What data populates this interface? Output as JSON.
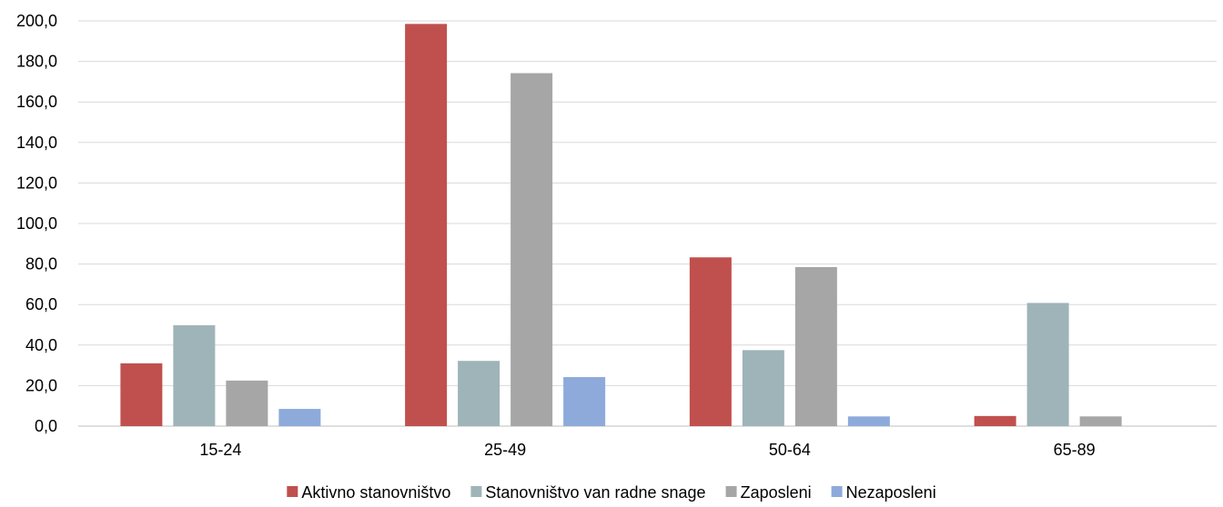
{
  "chart_data": {
    "type": "bar",
    "categories": [
      "15-24",
      "25-49",
      "50-64",
      "65-89"
    ],
    "series": [
      {
        "name": "Aktivno stanovništvo",
        "color": "#c0504d",
        "values": [
          31.0,
          198.5,
          83.3,
          5.0
        ]
      },
      {
        "name": "Stanovništvo van radne snage",
        "color": "#9fb4b8",
        "values": [
          49.8,
          32.2,
          37.5,
          60.8
        ]
      },
      {
        "name": "Zaposleni",
        "color": "#a6a6a6",
        "values": [
          22.5,
          174.2,
          78.5,
          4.8
        ]
      },
      {
        "name": "Nezaposleni",
        "color": "#8eaadb",
        "values": [
          8.5,
          24.2,
          4.8,
          0
        ]
      }
    ],
    "ylim": [
      0,
      200
    ],
    "yticks": [
      "0,0",
      "20,0",
      "40,0",
      "60,0",
      "80,0",
      "100,0",
      "120,0",
      "140,0",
      "160,0",
      "180,0",
      "200,0"
    ],
    "grid": true,
    "legend_position": "bottom"
  }
}
